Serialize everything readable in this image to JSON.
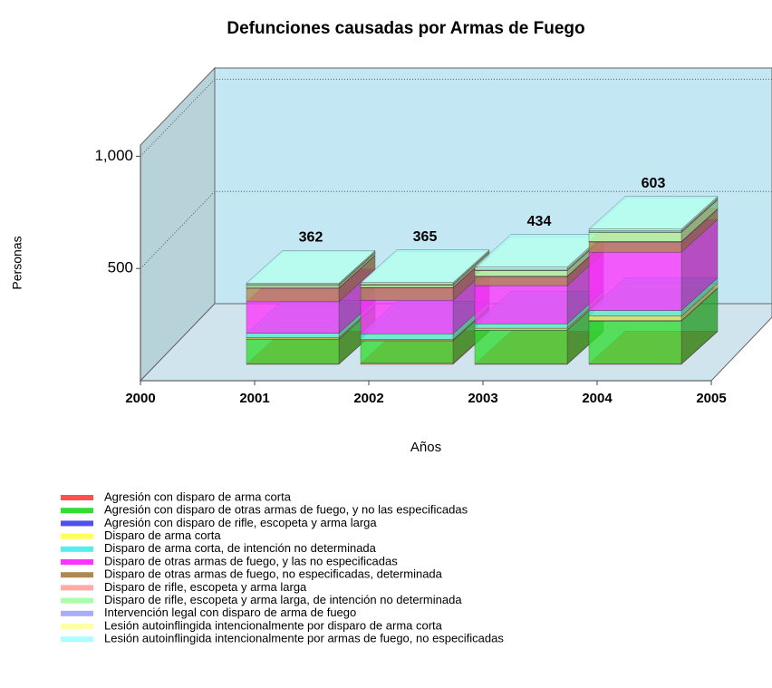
{
  "chart_data": {
    "type": "bar3d_stacked",
    "title": "Defunciones causadas por Armas de Fuego",
    "x_label": "Años",
    "y_label": "Personas",
    "x": [
      2001,
      2002,
      2003,
      2004
    ],
    "xlim": [
      2000,
      2005
    ],
    "xticks": [
      2000,
      2001,
      2002,
      2003,
      2004,
      2005
    ],
    "ylim": [
      0,
      1050
    ],
    "yticks": [
      500,
      {
        "value": 1000,
        "label": "1,000"
      }
    ],
    "grid": true,
    "totals": [
      362,
      365,
      434,
      603
    ],
    "series": [
      {
        "name": "Agresión con disparo de arma corta",
        "color": "#ff5050",
        "values": [
          2,
          5,
          2,
          3
        ]
      },
      {
        "name": "Agresión con disparo de otras armas de fuego, y no las especificadas",
        "color": "#33dd33",
        "values": [
          110,
          100,
          150,
          190
        ]
      },
      {
        "name": "Agresión con disparo de rifle, escopeta y arma larga",
        "color": "#5050ee",
        "values": [
          1,
          1,
          1,
          2
        ]
      },
      {
        "name": "Disparo de arma corta",
        "color": "#ffff55",
        "values": [
          6,
          5,
          8,
          20
        ]
      },
      {
        "name": "Disparo de arma corta, de intención no determinada",
        "color": "#55eeee",
        "values": [
          20,
          25,
          20,
          25
        ]
      },
      {
        "name": "Disparo de otras armas de fuego, y las no especificadas",
        "color": "#ff33ff",
        "values": [
          140,
          150,
          170,
          260
        ]
      },
      {
        "name": "Disparo de otras armas de fuego, no especificadas, determinada",
        "color": "#b08850",
        "values": [
          60,
          55,
          40,
          45
        ]
      },
      {
        "name": "Disparo de rifle, escopeta y arma larga",
        "color": "#ffaaaa",
        "values": [
          2,
          2,
          2,
          3
        ]
      },
      {
        "name": "Disparo de rifle, escopeta y arma larga, de intención no determinada",
        "color": "#aaffaa",
        "values": [
          10,
          10,
          25,
          40
        ]
      },
      {
        "name": "Intervención legal con disparo de arma de fuego",
        "color": "#aaaaff",
        "values": [
          1,
          1,
          1,
          2
        ]
      },
      {
        "name": "Lesión autoinflingida intencionalmente por disparo de arma corta",
        "color": "#ffffaa",
        "values": [
          5,
          5,
          5,
          5
        ]
      },
      {
        "name": "Lesión autoinflingida intencionalmente por armas de fuego, no especificadas",
        "color": "#aaffff",
        "values": [
          5,
          6,
          10,
          8
        ]
      }
    ]
  }
}
